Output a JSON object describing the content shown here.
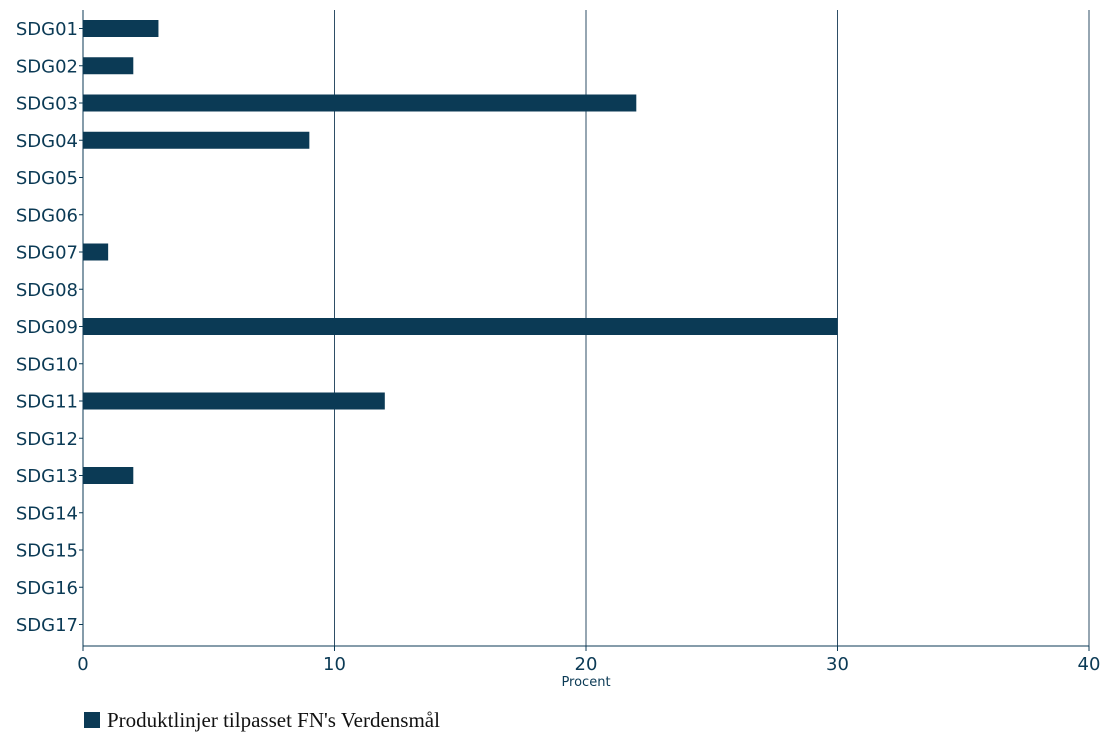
{
  "chart_data": {
    "type": "bar",
    "orientation": "horizontal",
    "categories": [
      "SDG01",
      "SDG02",
      "SDG03",
      "SDG04",
      "SDG05",
      "SDG06",
      "SDG07",
      "SDG08",
      "SDG09",
      "SDG10",
      "SDG11",
      "SDG12",
      "SDG13",
      "SDG14",
      "SDG15",
      "SDG16",
      "SDG17"
    ],
    "series": [
      {
        "name": "Produktlinjer tilpasset FN's Verdensmål",
        "values": [
          3,
          2,
          22,
          9,
          0,
          0,
          1,
          0,
          30,
          0,
          12,
          0,
          2,
          0,
          0,
          0,
          0
        ]
      }
    ],
    "xlabel": "Procent",
    "ylabel": "",
    "title": "",
    "xlim": [
      0,
      40
    ],
    "xticks": [
      "0",
      "10",
      "20",
      "30",
      "40"
    ],
    "grid": "vertical",
    "legend_position": "bottom-left",
    "colors": {
      "bar": "#0b3a55",
      "gridline": "#2e4e66",
      "axis": "#0b3a55",
      "text": "#0b3a55"
    }
  },
  "legend": {
    "label": "Produktlinjer tilpasset FN's Verdensmål"
  }
}
